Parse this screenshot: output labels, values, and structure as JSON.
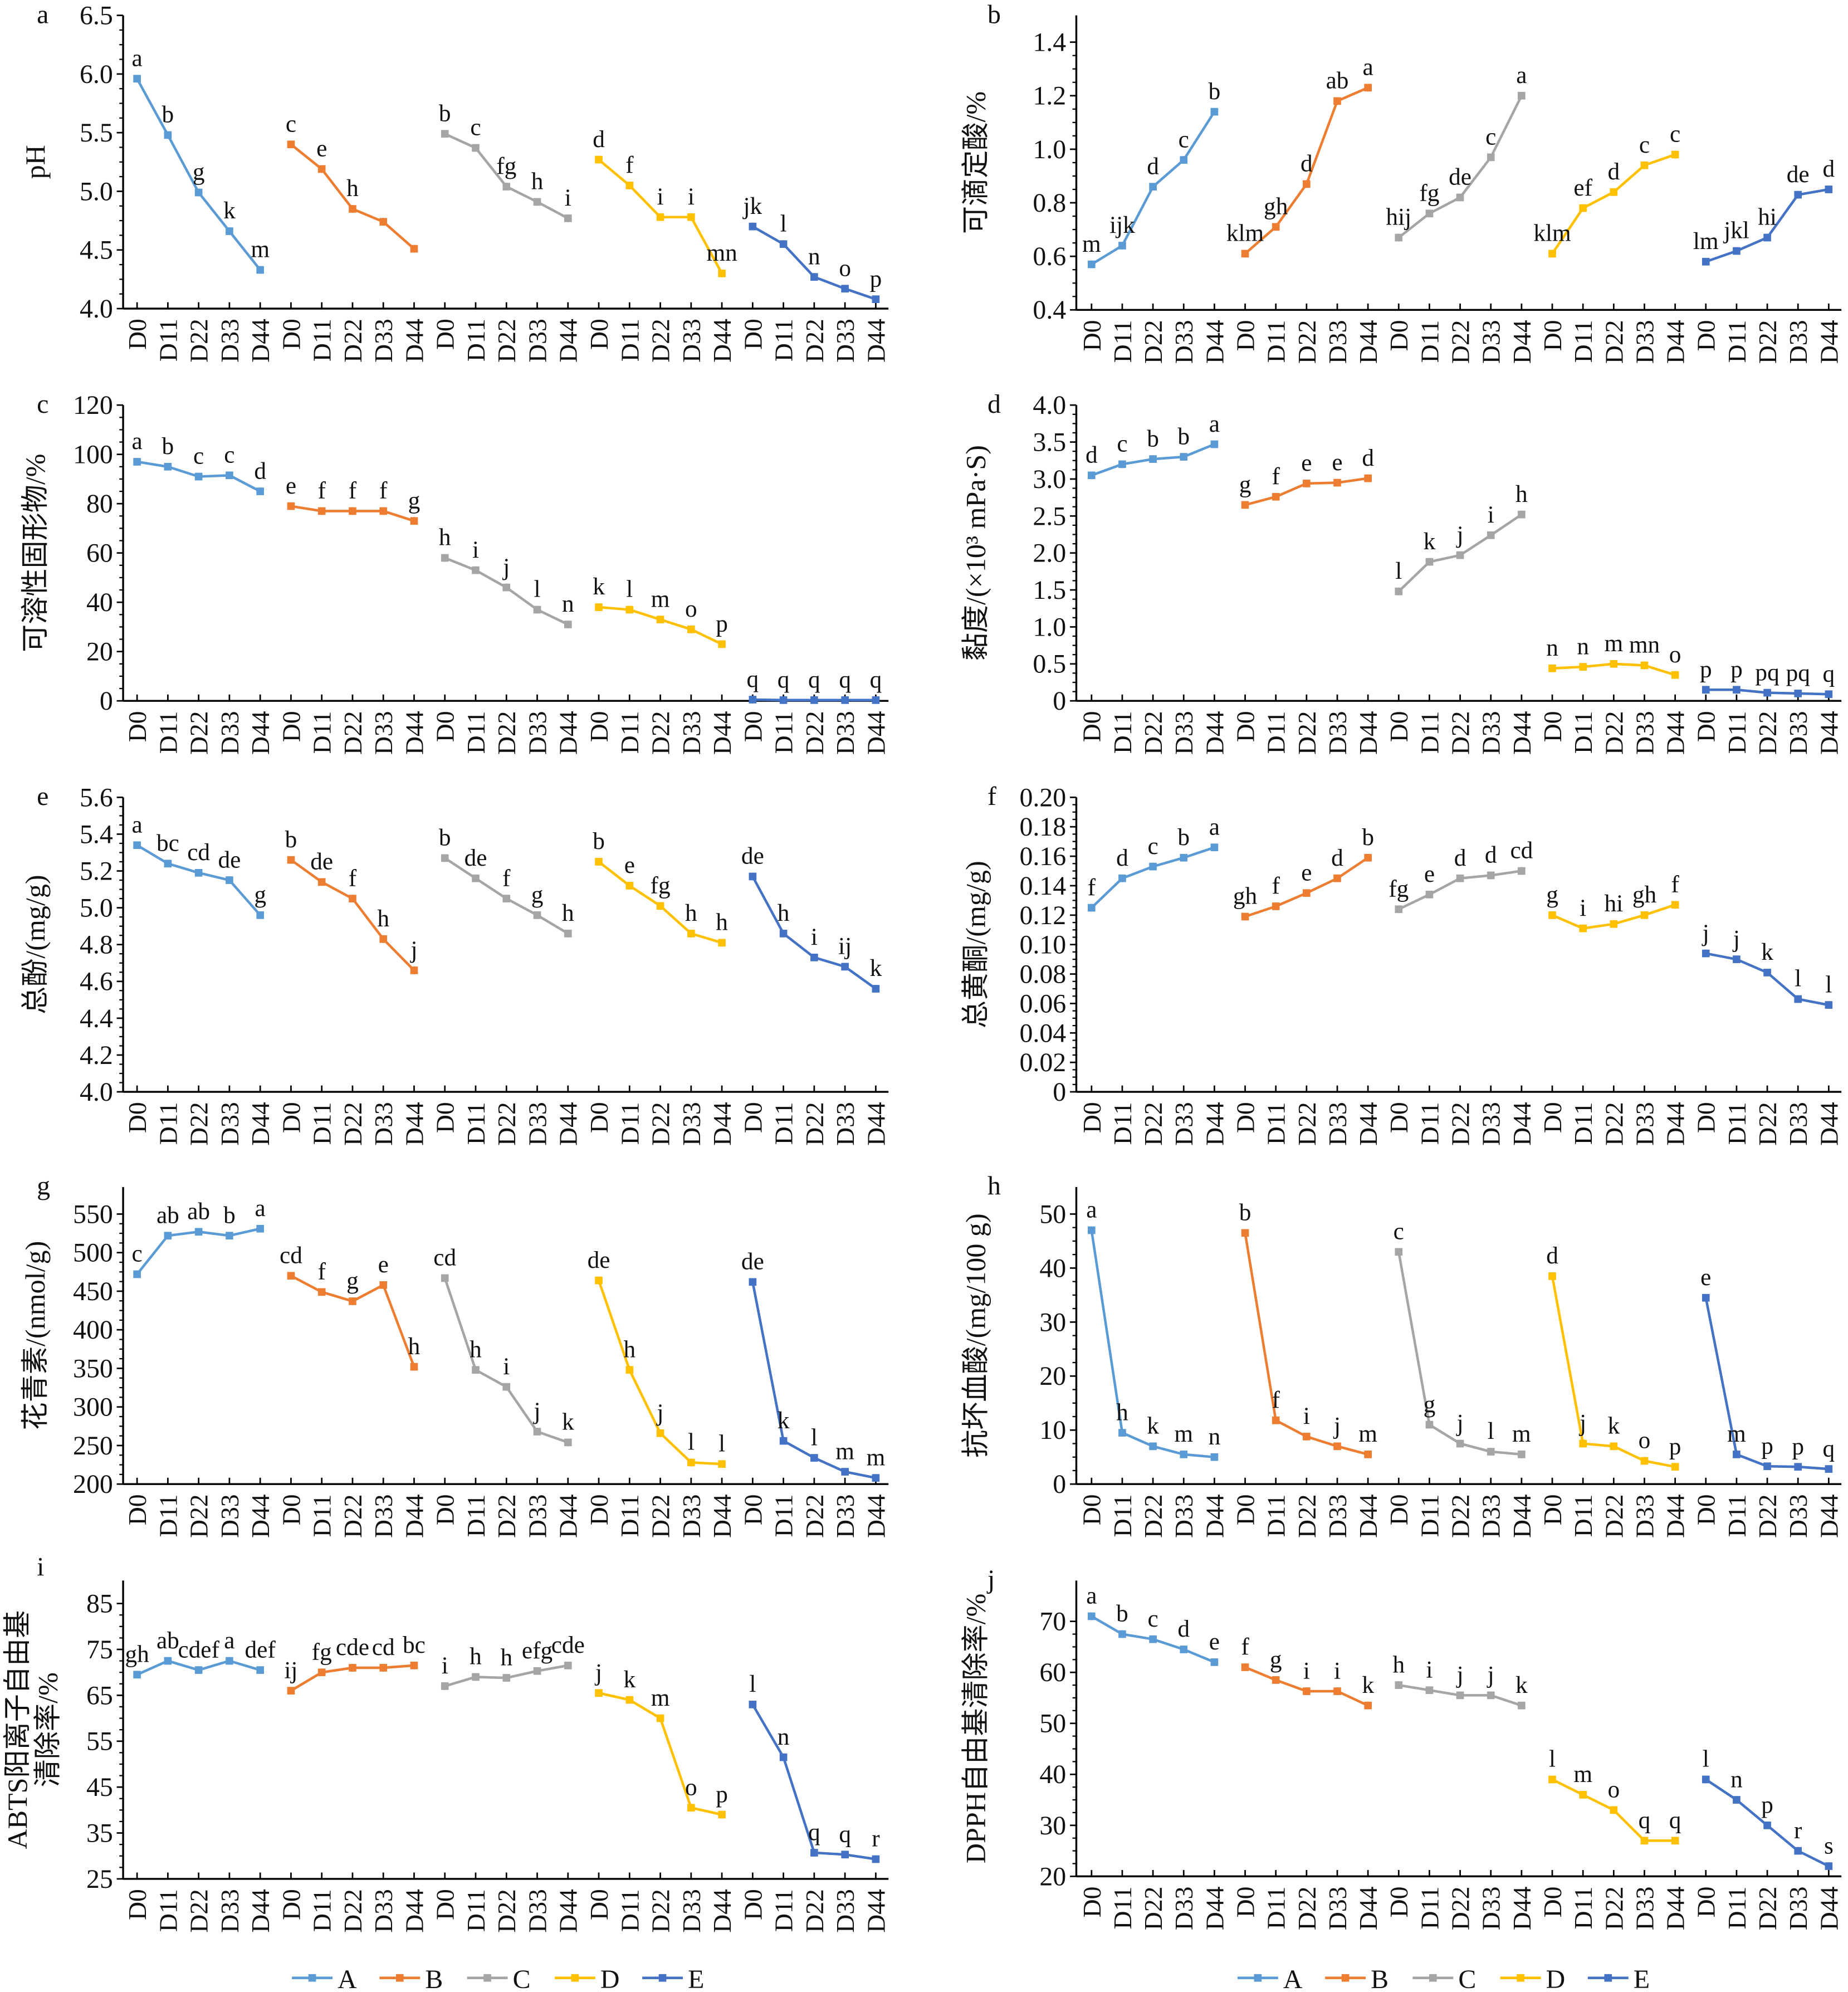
{
  "x_categories": [
    "D0",
    "D11",
    "D22",
    "D33",
    "D44"
  ],
  "groups": [
    "A",
    "B",
    "C",
    "D",
    "E"
  ],
  "colors": {
    "A": "#5B9BD5",
    "B": "#ED7D31",
    "C": "#A5A5A5",
    "D": "#FFC000",
    "E": "#4472C4"
  },
  "chart_data": [
    {
      "panel": "a",
      "type": "line",
      "ylabel": "pH",
      "ylim": [
        4.0,
        6.5
      ],
      "yticks": [
        "4.0",
        "4.5",
        "5.0",
        "5.5",
        "6.0",
        "6.5"
      ],
      "series": [
        {
          "name": "A",
          "values": [
            5.96,
            5.48,
            4.99,
            4.66,
            4.33
          ],
          "labels": [
            "a",
            "b",
            "g",
            "k",
            "m"
          ]
        },
        {
          "name": "B",
          "values": [
            5.4,
            5.19,
            4.85,
            4.74,
            4.51
          ],
          "labels": [
            "c",
            "e",
            "h",
            "",
            ""
          ]
        },
        {
          "name": "C",
          "values": [
            5.49,
            5.37,
            5.04,
            4.91,
            4.77
          ],
          "labels": [
            "b",
            "c",
            "fg",
            "h",
            "i"
          ]
        },
        {
          "name": "D",
          "values": [
            5.27,
            5.05,
            4.78,
            4.78,
            4.3
          ],
          "labels": [
            "d",
            "f",
            "i",
            "i",
            "mn"
          ]
        },
        {
          "name": "E",
          "values": [
            4.7,
            4.55,
            4.27,
            4.17,
            4.08
          ],
          "labels": [
            "jk",
            "l",
            "n",
            "o",
            "p"
          ]
        }
      ]
    },
    {
      "panel": "b",
      "type": "line",
      "ylabel": "可滴定酸/%",
      "ylim": [
        0.4,
        1.5
      ],
      "yticks": [
        "0.4",
        "0.6",
        "0.8",
        "1.0",
        "1.2",
        "1.4"
      ],
      "series": [
        {
          "name": "A",
          "values": [
            0.57,
            0.64,
            0.86,
            0.96,
            1.14
          ],
          "labels": [
            "m",
            "ijk",
            "d",
            "c",
            "b"
          ]
        },
        {
          "name": "B",
          "values": [
            0.61,
            0.71,
            0.87,
            1.18,
            1.23
          ],
          "labels": [
            "klm",
            "gh",
            "d",
            "ab",
            "a"
          ]
        },
        {
          "name": "C",
          "values": [
            0.67,
            0.76,
            0.82,
            0.97,
            1.2
          ],
          "labels": [
            "hij",
            "fg",
            "de",
            "c",
            "a"
          ]
        },
        {
          "name": "D",
          "values": [
            0.61,
            0.78,
            0.84,
            0.94,
            0.98
          ],
          "labels": [
            "klm",
            "ef",
            "d",
            "c",
            "c"
          ]
        },
        {
          "name": "E",
          "values": [
            0.58,
            0.62,
            0.67,
            0.83,
            0.85
          ],
          "labels": [
            "lm",
            "jkl",
            "hi",
            "de",
            "d"
          ]
        }
      ]
    },
    {
      "panel": "c",
      "type": "line",
      "ylabel": "可溶性固形物/%",
      "ylim": [
        0,
        120
      ],
      "yticks": [
        "0",
        "20",
        "40",
        "60",
        "80",
        "100",
        "120"
      ],
      "series": [
        {
          "name": "A",
          "values": [
            97,
            95,
            91,
            91.5,
            85
          ],
          "labels": [
            "a",
            "b",
            "c",
            "c",
            "d"
          ]
        },
        {
          "name": "B",
          "values": [
            79,
            77,
            77,
            77,
            73
          ],
          "labels": [
            "e",
            "f",
            "f",
            "f",
            "g"
          ]
        },
        {
          "name": "C",
          "values": [
            58,
            53,
            46,
            37,
            31
          ],
          "labels": [
            "h",
            "i",
            "j",
            "l",
            "n"
          ]
        },
        {
          "name": "D",
          "values": [
            38,
            37,
            33,
            29,
            23
          ],
          "labels": [
            "k",
            "l",
            "m",
            "o",
            "p"
          ]
        },
        {
          "name": "E",
          "values": [
            0.5,
            0.3,
            0.3,
            0.3,
            0.3
          ],
          "labels": [
            "q",
            "q",
            "q",
            "q",
            "q"
          ]
        }
      ]
    },
    {
      "panel": "d",
      "type": "line",
      "ylabel": "黏度/(×10³ mPa·S)",
      "ylim": [
        0,
        4.0
      ],
      "yticks": [
        "0",
        "0.5",
        "1.0",
        "1.5",
        "2.0",
        "2.5",
        "3.0",
        "3.5",
        "4.0"
      ],
      "series": [
        {
          "name": "A",
          "values": [
            3.05,
            3.2,
            3.27,
            3.3,
            3.47
          ],
          "labels": [
            "d",
            "c",
            "b",
            "b",
            "a"
          ]
        },
        {
          "name": "B",
          "values": [
            2.65,
            2.76,
            2.94,
            2.95,
            3.01
          ],
          "labels": [
            "g",
            "f",
            "e",
            "e",
            "d"
          ]
        },
        {
          "name": "C",
          "values": [
            1.48,
            1.88,
            1.97,
            2.24,
            2.52
          ],
          "labels": [
            "l",
            "k",
            "j",
            "i",
            "h"
          ]
        },
        {
          "name": "D",
          "values": [
            0.44,
            0.46,
            0.5,
            0.48,
            0.35
          ],
          "labels": [
            "n",
            "n",
            "m",
            "mn",
            "o"
          ]
        },
        {
          "name": "E",
          "values": [
            0.15,
            0.15,
            0.11,
            0.1,
            0.09
          ],
          "labels": [
            "p",
            "p",
            "pq",
            "pq",
            "q"
          ]
        }
      ]
    },
    {
      "panel": "e",
      "type": "line",
      "ylabel": "总酚/(mg/g)",
      "ylim": [
        4.0,
        5.6
      ],
      "yticks": [
        "4.0",
        "4.2",
        "4.4",
        "4.6",
        "4.8",
        "5.0",
        "5.2",
        "5.4",
        "5.6"
      ],
      "series": [
        {
          "name": "A",
          "values": [
            5.34,
            5.24,
            5.19,
            5.15,
            4.96
          ],
          "labels": [
            "a",
            "bc",
            "cd",
            "de",
            "g"
          ]
        },
        {
          "name": "B",
          "values": [
            5.26,
            5.14,
            5.05,
            4.83,
            4.66
          ],
          "labels": [
            "b",
            "de",
            "f",
            "h",
            "j"
          ]
        },
        {
          "name": "C",
          "values": [
            5.27,
            5.16,
            5.05,
            4.96,
            4.86
          ],
          "labels": [
            "b",
            "de",
            "f",
            "g",
            "h"
          ]
        },
        {
          "name": "D",
          "values": [
            5.25,
            5.12,
            5.01,
            4.86,
            4.81
          ],
          "labels": [
            "b",
            "e",
            "fg",
            "h",
            "h"
          ]
        },
        {
          "name": "E",
          "values": [
            5.17,
            4.86,
            4.73,
            4.68,
            4.56
          ],
          "labels": [
            "de",
            "h",
            "i",
            "ij",
            "k"
          ]
        }
      ]
    },
    {
      "panel": "f",
      "type": "line",
      "ylabel": "总黄酮/(mg/g)",
      "ylim": [
        0,
        0.2
      ],
      "yticks": [
        "0",
        "0.02",
        "0.04",
        "0.06",
        "0.08",
        "0.10",
        "0.12",
        "0.14",
        "0.16",
        "0.18",
        "0.20"
      ],
      "series": [
        {
          "name": "A",
          "values": [
            0.125,
            0.145,
            0.153,
            0.159,
            0.166
          ],
          "labels": [
            "f",
            "d",
            "c",
            "b",
            "a"
          ]
        },
        {
          "name": "B",
          "values": [
            0.119,
            0.126,
            0.135,
            0.145,
            0.159
          ],
          "labels": [
            "gh",
            "f",
            "e",
            "d",
            "b"
          ]
        },
        {
          "name": "C",
          "values": [
            0.124,
            0.134,
            0.145,
            0.147,
            0.15
          ],
          "labels": [
            "fg",
            "e",
            "d",
            "d",
            "cd"
          ]
        },
        {
          "name": "D",
          "values": [
            0.12,
            0.111,
            0.114,
            0.12,
            0.127
          ],
          "labels": [
            "g",
            "i",
            "hi",
            "gh",
            "f"
          ]
        },
        {
          "name": "E",
          "values": [
            0.094,
            0.09,
            0.081,
            0.063,
            0.059
          ],
          "labels": [
            "j",
            "j",
            "k",
            "l",
            "l"
          ]
        }
      ]
    },
    {
      "panel": "g",
      "type": "line",
      "ylabel": "花青素/(nmol/g)",
      "ylim": [
        200,
        585
      ],
      "yticks": [
        "200",
        "250",
        "300",
        "350",
        "400",
        "450",
        "500",
        "550"
      ],
      "series": [
        {
          "name": "A",
          "values": [
            472,
            522,
            527,
            522,
            531
          ],
          "labels": [
            "c",
            "ab",
            "ab",
            "b",
            "a"
          ]
        },
        {
          "name": "B",
          "values": [
            470,
            449,
            437,
            458,
            352
          ],
          "labels": [
            "cd",
            "f",
            "g",
            "e",
            "h"
          ]
        },
        {
          "name": "C",
          "values": [
            467,
            348,
            326,
            268,
            254
          ],
          "labels": [
            "cd",
            "h",
            "i",
            "j",
            "k"
          ]
        },
        {
          "name": "D",
          "values": [
            464,
            348,
            266,
            228,
            226
          ],
          "labels": [
            "de",
            "h",
            "j",
            "l",
            "l"
          ]
        },
        {
          "name": "E",
          "values": [
            462,
            256,
            234,
            216,
            208
          ],
          "labels": [
            "de",
            "k",
            "l",
            "m",
            "m"
          ]
        }
      ]
    },
    {
      "panel": "h",
      "type": "line",
      "ylabel": "抗坏血酸/(mg/100 g)",
      "ylim": [
        0,
        55
      ],
      "yticks": [
        "0",
        "10",
        "20",
        "30",
        "40",
        "50"
      ],
      "series": [
        {
          "name": "A",
          "values": [
            47,
            9.5,
            7,
            5.5,
            5
          ],
          "labels": [
            "a",
            "h",
            "k",
            "m",
            "n"
          ]
        },
        {
          "name": "B",
          "values": [
            46.5,
            11.8,
            8.8,
            7,
            5.5
          ],
          "labels": [
            "b",
            "f",
            "i",
            "j",
            "m"
          ]
        },
        {
          "name": "C",
          "values": [
            43,
            11,
            7.5,
            6,
            5.5
          ],
          "labels": [
            "c",
            "g",
            "j",
            "l",
            "m"
          ]
        },
        {
          "name": "D",
          "values": [
            38.5,
            7.5,
            7,
            4.3,
            3.2
          ],
          "labels": [
            "d",
            "j",
            "k",
            "o",
            "p"
          ]
        },
        {
          "name": "E",
          "values": [
            34.5,
            5.5,
            3.3,
            3.2,
            2.8
          ],
          "labels": [
            "e",
            "m",
            "p",
            "p",
            "q"
          ]
        }
      ]
    },
    {
      "panel": "i",
      "type": "line",
      "ylabel": "ABTS阳离子自由基",
      "ylabel2": "清除率/%",
      "ylim": [
        25,
        90
      ],
      "yticks": [
        "25",
        "35",
        "45",
        "55",
        "65",
        "75",
        "85"
      ],
      "series": [
        {
          "name": "A",
          "values": [
            69.5,
            72.5,
            70.5,
            72.5,
            70.5
          ],
          "labels": [
            "gh",
            "ab",
            "cdef",
            "a",
            "def"
          ]
        },
        {
          "name": "B",
          "values": [
            66,
            70,
            71,
            71,
            71.5
          ],
          "labels": [
            "ij",
            "fg",
            "cde",
            "cd",
            "bc"
          ]
        },
        {
          "name": "C",
          "values": [
            67,
            69,
            68.8,
            70.3,
            71.5
          ],
          "labels": [
            "i",
            "h",
            "h",
            "efg",
            "cde"
          ]
        },
        {
          "name": "D",
          "values": [
            65.5,
            64,
            60,
            40.5,
            39
          ],
          "labels": [
            "j",
            "k",
            "m",
            "o",
            "p"
          ]
        },
        {
          "name": "E",
          "values": [
            63,
            51.5,
            30.7,
            30.3,
            29.3
          ],
          "labels": [
            "l",
            "n",
            "q",
            "q",
            "r"
          ]
        }
      ]
    },
    {
      "panel": "j",
      "type": "line",
      "ylabel": "DPPH自由基清除率/%",
      "ylim": [
        20,
        78
      ],
      "yticks": [
        "20",
        "30",
        "40",
        "50",
        "60",
        "70"
      ],
      "series": [
        {
          "name": "A",
          "values": [
            71,
            67.5,
            66.5,
            64.5,
            62
          ],
          "labels": [
            "a",
            "b",
            "c",
            "d",
            "e"
          ]
        },
        {
          "name": "B",
          "values": [
            61,
            58.5,
            56.3,
            56.3,
            53.5
          ],
          "labels": [
            "f",
            "g",
            "i",
            "i",
            "k"
          ]
        },
        {
          "name": "C",
          "values": [
            57.5,
            56.5,
            55.5,
            55.5,
            53.5
          ],
          "labels": [
            "h",
            "i",
            "j",
            "j",
            "k"
          ]
        },
        {
          "name": "D",
          "values": [
            39,
            36,
            33,
            27,
            27
          ],
          "labels": [
            "l",
            "m",
            "o",
            "q",
            "q"
          ]
        },
        {
          "name": "E",
          "values": [
            39,
            35,
            30,
            25,
            22
          ],
          "labels": [
            "l",
            "n",
            "p",
            "r",
            "s"
          ]
        }
      ]
    }
  ]
}
